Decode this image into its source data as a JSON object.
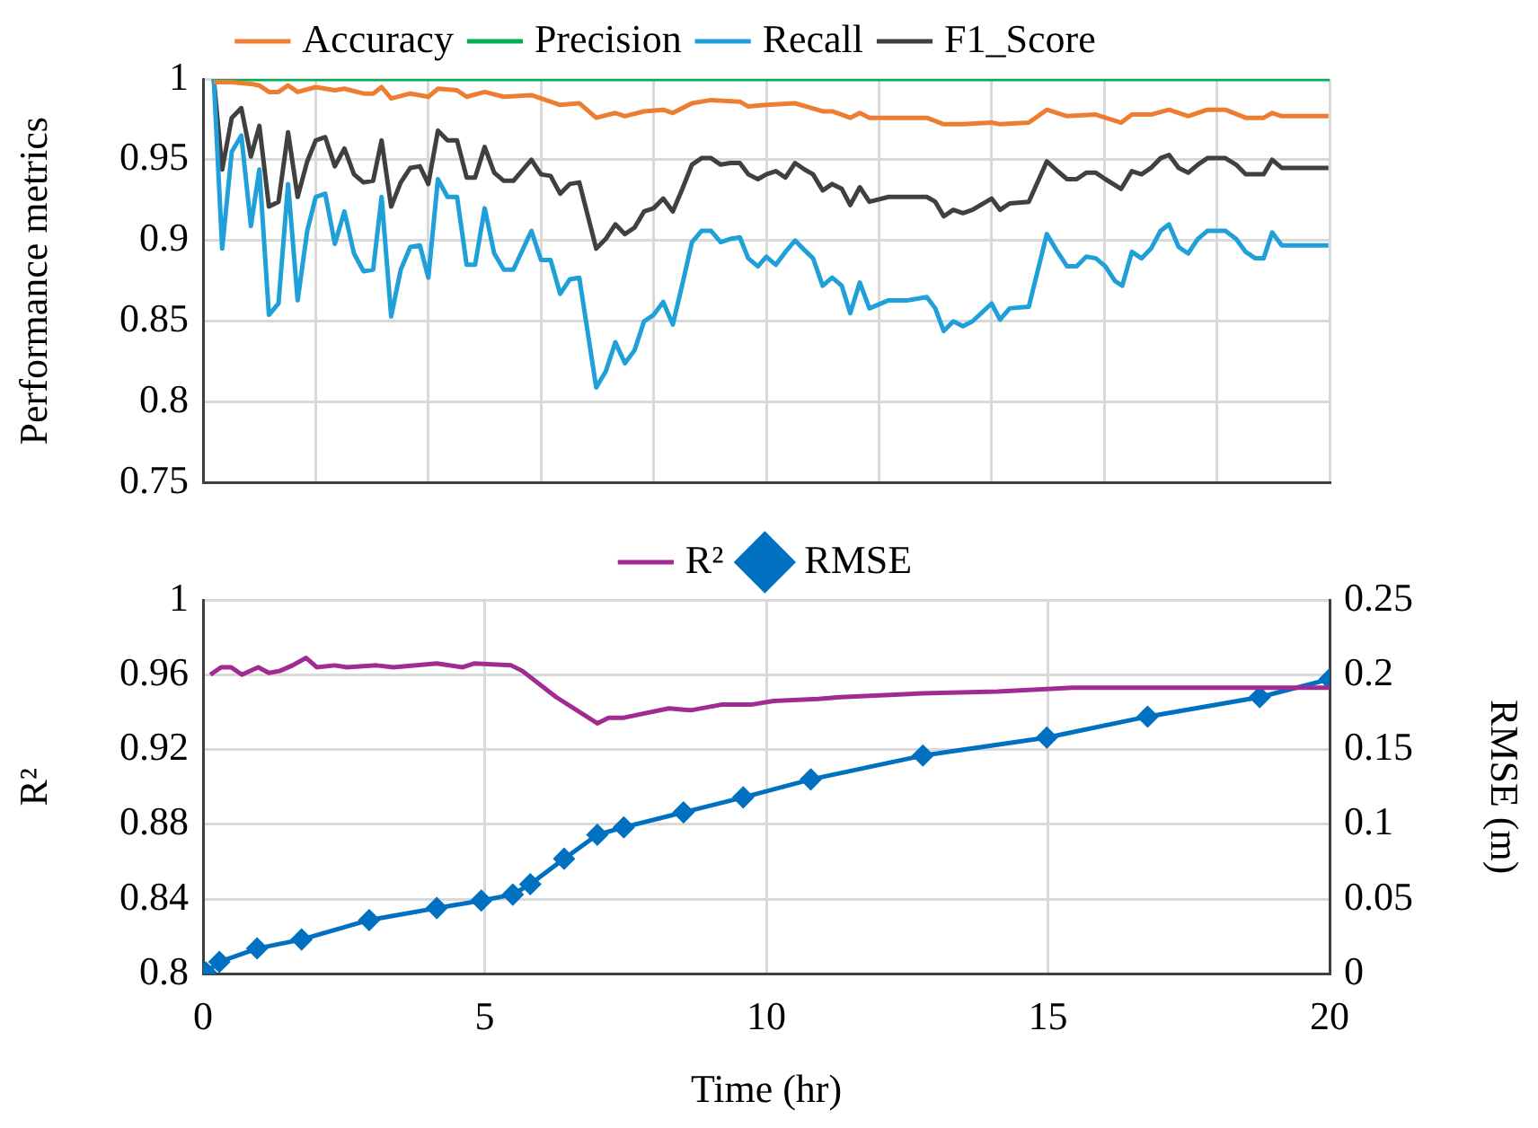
{
  "chart_data": [
    {
      "type": "line",
      "ylabel": "Performance metrics",
      "legend": "top",
      "grid": true,
      "tick_labels": "y",
      "xlim": [
        0,
        20
      ],
      "xticks": [
        {
          "value": 0,
          "label": null
        },
        {
          "value": 2,
          "label": null
        },
        {
          "value": 4,
          "label": null
        },
        {
          "value": 6,
          "label": null
        },
        {
          "value": 8,
          "label": null
        },
        {
          "value": 10,
          "label": null
        },
        {
          "value": 12,
          "label": null
        },
        {
          "value": 14,
          "label": null
        },
        {
          "value": 16,
          "label": null
        },
        {
          "value": 18,
          "label": null
        },
        {
          "value": 20,
          "label": null
        }
      ],
      "ylim": [
        0.75,
        1
      ],
      "yticks": [
        0.75,
        0.8,
        0.85,
        0.9,
        0.95,
        1
      ],
      "series": [
        {
          "name": "Accuracy",
          "color": "#ed7d31",
          "x": [
            0.19,
            0.51,
            0.85,
            1.0,
            1.17,
            1.34,
            1.51,
            1.68,
            2.0,
            2.34,
            2.51,
            2.85,
            3.02,
            3.17,
            3.34,
            3.68,
            4.0,
            4.17,
            4.51,
            4.68,
            5.0,
            5.34,
            5.83,
            6.34,
            6.68,
            6.98,
            7.32,
            7.49,
            7.83,
            8.17,
            8.34,
            8.68,
            9.02,
            9.53,
            9.68,
            10.0,
            10.51,
            11.0,
            11.17,
            11.49,
            11.66,
            11.83,
            12.85,
            13.15,
            13.49,
            14.0,
            14.15,
            14.66,
            14.98,
            15.34,
            15.85,
            16.3,
            16.49,
            16.83,
            17.15,
            17.49,
            17.83,
            18.15,
            18.51,
            18.83,
            18.98,
            19.15,
            19.98
          ],
          "values": [
            0.998,
            0.998,
            0.997,
            0.996,
            0.992,
            0.992,
            0.996,
            0.992,
            0.995,
            0.993,
            0.994,
            0.991,
            0.991,
            0.995,
            0.988,
            0.991,
            0.989,
            0.994,
            0.993,
            0.989,
            0.992,
            0.989,
            0.99,
            0.984,
            0.985,
            0.976,
            0.979,
            0.977,
            0.98,
            0.981,
            0.979,
            0.985,
            0.987,
            0.986,
            0.983,
            0.984,
            0.985,
            0.98,
            0.98,
            0.976,
            0.979,
            0.976,
            0.976,
            0.972,
            0.972,
            0.973,
            0.972,
            0.973,
            0.981,
            0.977,
            0.978,
            0.973,
            0.978,
            0.978,
            0.981,
            0.977,
            0.981,
            0.981,
            0.976,
            0.976,
            0.979,
            0.977,
            0.977
          ]
        },
        {
          "name": "Precision",
          "color": "#00b050",
          "x": [
            0.19,
            20
          ],
          "values": [
            1,
            1
          ]
        },
        {
          "name": "Recall",
          "color": "#1fa0d8",
          "x": [
            0.19,
            0.34,
            0.51,
            0.68,
            0.85,
            1.0,
            1.17,
            1.34,
            1.51,
            1.68,
            1.85,
            2.0,
            2.17,
            2.34,
            2.51,
            2.68,
            2.85,
            3.02,
            3.17,
            3.34,
            3.51,
            3.68,
            3.85,
            4.0,
            4.17,
            4.34,
            4.51,
            4.68,
            4.83,
            5.0,
            5.17,
            5.34,
            5.51,
            5.83,
            6.0,
            6.17,
            6.34,
            6.51,
            6.68,
            6.98,
            7.15,
            7.32,
            7.49,
            7.66,
            7.83,
            8.0,
            8.17,
            8.34,
            8.51,
            8.68,
            8.85,
            9.02,
            9.19,
            9.36,
            9.53,
            9.68,
            9.85,
            10.0,
            10.17,
            10.34,
            10.51,
            10.68,
            10.83,
            11.0,
            11.17,
            11.34,
            11.49,
            11.66,
            11.83,
            12.17,
            12.51,
            12.85,
            13.0,
            13.15,
            13.32,
            13.49,
            13.66,
            14.0,
            14.15,
            14.32,
            14.66,
            14.98,
            15.17,
            15.34,
            15.51,
            15.68,
            15.85,
            16.02,
            16.19,
            16.32,
            16.49,
            16.66,
            16.83,
            17.0,
            17.15,
            17.32,
            17.49,
            17.66,
            17.83,
            18.15,
            18.34,
            18.51,
            18.68,
            18.83,
            18.98,
            19.15,
            19.98
          ],
          "values": [
            1.0,
            0.895,
            0.955,
            0.965,
            0.909,
            0.944,
            0.854,
            0.861,
            0.935,
            0.863,
            0.906,
            0.927,
            0.929,
            0.898,
            0.918,
            0.892,
            0.881,
            0.882,
            0.927,
            0.853,
            0.882,
            0.896,
            0.897,
            0.877,
            0.938,
            0.927,
            0.927,
            0.885,
            0.885,
            0.92,
            0.892,
            0.882,
            0.882,
            0.906,
            0.888,
            0.888,
            0.867,
            0.876,
            0.877,
            0.809,
            0.819,
            0.837,
            0.824,
            0.832,
            0.85,
            0.854,
            0.862,
            0.848,
            0.873,
            0.899,
            0.906,
            0.906,
            0.899,
            0.901,
            0.902,
            0.889,
            0.884,
            0.89,
            0.885,
            0.893,
            0.9,
            0.894,
            0.889,
            0.872,
            0.877,
            0.872,
            0.855,
            0.874,
            0.858,
            0.863,
            0.863,
            0.865,
            0.858,
            0.844,
            0.85,
            0.847,
            0.85,
            0.861,
            0.851,
            0.858,
            0.859,
            0.904,
            0.893,
            0.884,
            0.884,
            0.89,
            0.889,
            0.884,
            0.875,
            0.872,
            0.893,
            0.889,
            0.895,
            0.906,
            0.91,
            0.896,
            0.892,
            0.901,
            0.906,
            0.906,
            0.901,
            0.893,
            0.889,
            0.889,
            0.905,
            0.897,
            0.897
          ]
        },
        {
          "name": "F1_Score",
          "color": "#404040",
          "x": [
            0.19,
            0.34,
            0.51,
            0.68,
            0.85,
            1.0,
            1.17,
            1.34,
            1.51,
            1.68,
            1.85,
            2.0,
            2.17,
            2.34,
            2.51,
            2.68,
            2.85,
            3.02,
            3.17,
            3.34,
            3.51,
            3.68,
            3.85,
            4.0,
            4.17,
            4.34,
            4.51,
            4.68,
            4.83,
            5.0,
            5.17,
            5.34,
            5.51,
            5.83,
            6.0,
            6.17,
            6.34,
            6.51,
            6.68,
            6.98,
            7.15,
            7.32,
            7.49,
            7.66,
            7.83,
            8.0,
            8.17,
            8.34,
            8.51,
            8.68,
            8.85,
            9.02,
            9.19,
            9.36,
            9.53,
            9.68,
            9.85,
            10.0,
            10.17,
            10.34,
            10.51,
            10.68,
            10.83,
            11.0,
            11.17,
            11.34,
            11.49,
            11.66,
            11.83,
            12.17,
            12.85,
            13.0,
            13.15,
            13.32,
            13.49,
            13.66,
            14.0,
            14.15,
            14.32,
            14.66,
            14.98,
            15.17,
            15.34,
            15.51,
            15.68,
            15.85,
            16.02,
            16.3,
            16.49,
            16.66,
            16.83,
            17.0,
            17.15,
            17.32,
            17.49,
            17.66,
            17.83,
            18.15,
            18.34,
            18.51,
            18.83,
            18.98,
            19.15,
            19.98
          ],
          "values": [
            1.0,
            0.944,
            0.976,
            0.982,
            0.952,
            0.971,
            0.921,
            0.924,
            0.967,
            0.927,
            0.949,
            0.962,
            0.964,
            0.946,
            0.957,
            0.941,
            0.936,
            0.937,
            0.962,
            0.921,
            0.936,
            0.945,
            0.946,
            0.935,
            0.968,
            0.962,
            0.962,
            0.939,
            0.939,
            0.958,
            0.942,
            0.937,
            0.937,
            0.95,
            0.941,
            0.94,
            0.929,
            0.935,
            0.936,
            0.895,
            0.901,
            0.91,
            0.904,
            0.908,
            0.918,
            0.92,
            0.926,
            0.918,
            0.932,
            0.947,
            0.951,
            0.951,
            0.947,
            0.948,
            0.948,
            0.941,
            0.938,
            0.941,
            0.943,
            0.939,
            0.948,
            0.944,
            0.941,
            0.931,
            0.935,
            0.932,
            0.922,
            0.933,
            0.924,
            0.927,
            0.927,
            0.924,
            0.915,
            0.919,
            0.917,
            0.919,
            0.926,
            0.919,
            0.923,
            0.924,
            0.949,
            0.943,
            0.938,
            0.938,
            0.942,
            0.942,
            0.938,
            0.932,
            0.943,
            0.941,
            0.945,
            0.951,
            0.953,
            0.945,
            0.942,
            0.947,
            0.951,
            0.951,
            0.947,
            0.941,
            0.941,
            0.95,
            0.945,
            0.945
          ]
        }
      ]
    },
    {
      "type": "line",
      "xlabel": "Time (hr)",
      "ylabel": "R²",
      "y2label": "RMSE (m)",
      "legend": "top",
      "grid": true,
      "xlim": [
        0,
        20
      ],
      "xticks": [
        0,
        5,
        10,
        15,
        20
      ],
      "ylim": [
        0.8,
        1
      ],
      "yticks": [
        0.8,
        0.84,
        0.88,
        0.92,
        0.96,
        1
      ],
      "y2lim": [
        0,
        0.25
      ],
      "y2ticks": [
        0,
        0.05,
        0.1,
        0.15,
        0.2,
        0.25
      ],
      "series": [
        {
          "name": "R²",
          "color": "#a02b93",
          "x": [
            0.13,
            0.32,
            0.5,
            0.69,
            0.98,
            1.17,
            1.36,
            1.59,
            1.83,
            2.02,
            2.34,
            2.55,
            3.08,
            3.38,
            4.15,
            4.61,
            4.81,
            5.47,
            5.67,
            6.27,
            7.0,
            7.2,
            7.47,
            8.27,
            8.66,
            9.2,
            9.73,
            10.13,
            10.92,
            11.32,
            12.78,
            14.11,
            15.44,
            16.77,
            18.63,
            20.0
          ],
          "values": [
            0.96,
            0.964,
            0.964,
            0.96,
            0.964,
            0.961,
            0.962,
            0.965,
            0.969,
            0.964,
            0.965,
            0.964,
            0.965,
            0.964,
            0.966,
            0.964,
            0.966,
            0.965,
            0.962,
            0.948,
            0.934,
            0.937,
            0.937,
            0.942,
            0.941,
            0.944,
            0.944,
            0.946,
            0.947,
            0.948,
            0.95,
            0.951,
            0.953,
            0.953,
            0.953,
            0.953
          ]
        },
        {
          "name": "RMSE",
          "color": "#0070c0",
          "axis": "y2",
          "marker": "diamond",
          "x": [
            0.05,
            0.29,
            0.96,
            1.75,
            2.95,
            4.15,
            4.94,
            5.5,
            5.81,
            6.41,
            7.0,
            7.47,
            8.53,
            9.59,
            10.79,
            12.78,
            14.98,
            16.77,
            18.76,
            20.0
          ],
          "values": [
            0.001,
            0.008,
            0.017,
            0.023,
            0.036,
            0.044,
            0.049,
            0.053,
            0.06,
            0.077,
            0.093,
            0.098,
            0.108,
            0.118,
            0.13,
            0.146,
            0.158,
            0.172,
            0.185,
            0.197
          ]
        }
      ]
    }
  ]
}
